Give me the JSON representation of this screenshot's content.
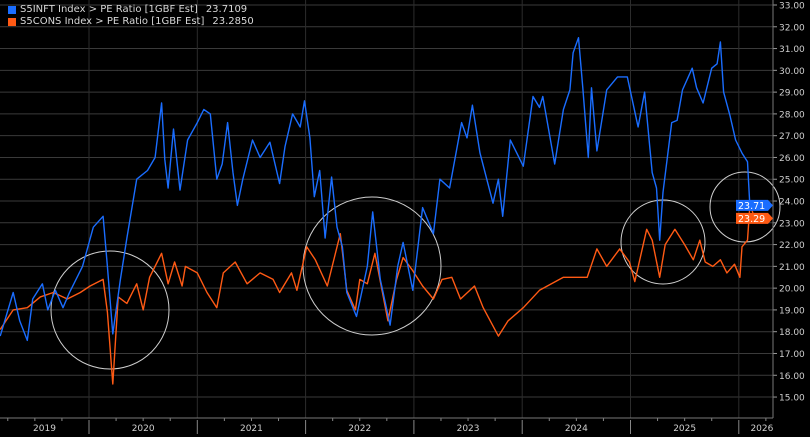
{
  "legend": [
    {
      "label": "S5INFT Index > PE Ratio [1GBF Est]",
      "value": "23.7109",
      "color": "#1a6dff"
    },
    {
      "label": "S5CONS Index > PE Ratio [1GBF Est]",
      "value": "23.2850",
      "color": "#ff5a14"
    }
  ],
  "chart_data": {
    "type": "line",
    "title": "",
    "xlabel": "",
    "ylabel": "",
    "xlim": [
      2019.18,
      2026.14
    ],
    "ylim": [
      15,
      33
    ],
    "grid": true,
    "legend_position": "top-left",
    "x_tick_labels": [
      "2019",
      "2020",
      "2021",
      "2022",
      "2023",
      "2024",
      "2025",
      "2026"
    ],
    "y_ticks": [
      15,
      16,
      17,
      18,
      19,
      20,
      21,
      22,
      23,
      24,
      25,
      26,
      27,
      28,
      29,
      30,
      31,
      32,
      33
    ],
    "y_tick_labels": [
      "15.00",
      "16.00",
      "17.00",
      "18.00",
      "19.00",
      "20.00",
      "21.00",
      "22.00",
      "23.00",
      "24.00",
      "25.00",
      "26.00",
      "27.00",
      "28.00",
      "29.00",
      "30.00",
      "31.00",
      "32.00",
      "33.00"
    ],
    "last_value_labels": [
      "23.71",
      "23.29"
    ],
    "series": [
      {
        "name": "S5INFT Index > PE Ratio [1GBF Est]",
        "color": "#1a6dff",
        "last": 23.71,
        "x": [
          2019.18,
          2019.3,
          2019.36,
          2019.43,
          2019.48,
          2019.57,
          2019.62,
          2019.69,
          2019.76,
          2019.82,
          2019.94,
          2020.04,
          2020.13,
          2020.17,
          2020.22,
          2020.29,
          2020.35,
          2020.44,
          2020.54,
          2020.61,
          2020.67,
          2020.7,
          2020.73,
          2020.78,
          2020.84,
          2020.91,
          2021.0,
          2021.06,
          2021.12,
          2021.18,
          2021.23,
          2021.28,
          2021.33,
          2021.37,
          2021.42,
          2021.51,
          2021.58,
          2021.67,
          2021.76,
          2021.81,
          2021.88,
          2021.95,
          2021.99,
          2022.04,
          2022.08,
          2022.13,
          2022.18,
          2022.24,
          2022.29,
          2022.34,
          2022.38,
          2022.47,
          2022.57,
          2022.62,
          2022.69,
          2022.78,
          2022.85,
          2022.9,
          2022.99,
          2023.08,
          2023.18,
          2023.24,
          2023.33,
          2023.44,
          2023.49,
          2023.54,
          2023.61,
          2023.73,
          2023.78,
          2023.82,
          2023.89,
          2023.95,
          2024.01,
          2024.1,
          2024.16,
          2024.19,
          2024.3,
          2024.38,
          2024.44,
          2024.47,
          2024.52,
          2024.56,
          2024.61,
          2024.64,
          2024.69,
          2024.78,
          2024.88,
          2024.97,
          2025.07,
          2025.13,
          2025.2,
          2025.24,
          2025.27,
          2025.3,
          2025.38,
          2025.43,
          2025.48,
          2025.57,
          2025.61,
          2025.67,
          2025.75,
          2025.8,
          2025.83,
          2025.86,
          2025.92,
          2025.97,
          2026.03,
          2026.08,
          2026.1,
          2026.13
        ],
        "y": [
          17.8,
          19.8,
          18.5,
          17.6,
          19.5,
          20.2,
          19.0,
          19.9,
          19.1,
          19.8,
          21.0,
          22.8,
          23.3,
          21.0,
          17.9,
          20.4,
          22.3,
          25.0,
          25.4,
          26.0,
          28.5,
          25.9,
          24.6,
          27.3,
          24.5,
          26.8,
          27.6,
          28.2,
          28.0,
          25.0,
          25.7,
          27.6,
          25.3,
          23.8,
          25.0,
          26.8,
          26.0,
          26.7,
          24.8,
          26.5,
          28.0,
          27.4,
          28.6,
          26.9,
          24.2,
          25.4,
          22.3,
          25.1,
          22.8,
          21.9,
          19.8,
          18.7,
          21.0,
          23.5,
          20.4,
          18.3,
          21.0,
          22.1,
          19.9,
          23.7,
          22.5,
          25.0,
          24.6,
          27.6,
          26.9,
          28.4,
          26.2,
          23.9,
          25.0,
          23.3,
          26.8,
          26.2,
          25.6,
          28.8,
          28.3,
          28.8,
          25.7,
          28.2,
          29.1,
          30.8,
          31.5,
          29.2,
          26.0,
          29.2,
          26.3,
          29.1,
          29.7,
          29.7,
          27.4,
          29.0,
          25.3,
          24.6,
          22.2,
          24.4,
          27.6,
          27.7,
          29.1,
          30.1,
          29.2,
          28.5,
          30.1,
          30.3,
          31.3,
          29.0,
          27.9,
          26.8,
          26.2,
          25.8,
          24.0,
          23.71
        ]
      },
      {
        "name": "S5CONS Index > PE Ratio [1GBF Est]",
        "color": "#ff5a14",
        "last": 23.29,
        "x": [
          2019.18,
          2019.3,
          2019.43,
          2019.55,
          2019.67,
          2019.8,
          2019.92,
          2020.01,
          2020.13,
          2020.17,
          2020.22,
          2020.27,
          2020.35,
          2020.44,
          2020.5,
          2020.56,
          2020.67,
          2020.73,
          2020.79,
          2020.86,
          2020.89,
          2021.0,
          2021.09,
          2021.18,
          2021.24,
          2021.35,
          2021.46,
          2021.58,
          2021.7,
          2021.76,
          2021.87,
          2021.92,
          2022.01,
          2022.09,
          2022.2,
          2022.32,
          2022.38,
          2022.46,
          2022.5,
          2022.57,
          2022.64,
          2022.76,
          2022.84,
          2022.9,
          2022.99,
          2023.08,
          2023.18,
          2023.26,
          2023.35,
          2023.43,
          2023.56,
          2023.64,
          2023.78,
          2023.87,
          2024.01,
          2024.16,
          2024.38,
          2024.6,
          2024.69,
          2024.78,
          2024.9,
          2024.99,
          2025.04,
          2025.15,
          2025.2,
          2025.27,
          2025.32,
          2025.41,
          2025.5,
          2025.58,
          2025.64,
          2025.69,
          2025.76,
          2025.83,
          2025.89,
          2025.96,
          2026.01,
          2026.03,
          2026.08,
          2026.1,
          2026.12,
          2026.14
        ],
        "y": [
          18.1,
          19.0,
          19.1,
          19.6,
          19.8,
          19.5,
          19.8,
          20.1,
          20.4,
          18.9,
          15.6,
          19.6,
          19.3,
          20.2,
          19.0,
          20.5,
          21.6,
          20.2,
          21.2,
          20.1,
          21.0,
          20.7,
          19.8,
          19.1,
          20.7,
          21.2,
          20.2,
          20.7,
          20.4,
          19.8,
          20.7,
          19.9,
          21.9,
          21.3,
          20.1,
          22.5,
          19.9,
          19.0,
          20.4,
          20.2,
          21.6,
          18.5,
          20.4,
          21.4,
          20.8,
          20.1,
          19.5,
          20.4,
          20.5,
          19.5,
          20.1,
          19.1,
          17.8,
          18.5,
          19.1,
          19.9,
          20.5,
          20.5,
          21.8,
          21.0,
          21.8,
          21.2,
          20.3,
          22.7,
          22.2,
          20.5,
          22.0,
          22.7,
          22.0,
          21.3,
          22.2,
          21.2,
          21.0,
          21.3,
          20.7,
          21.1,
          20.5,
          21.9,
          22.2,
          23.6,
          23.6,
          23.29
        ]
      }
    ]
  }
}
